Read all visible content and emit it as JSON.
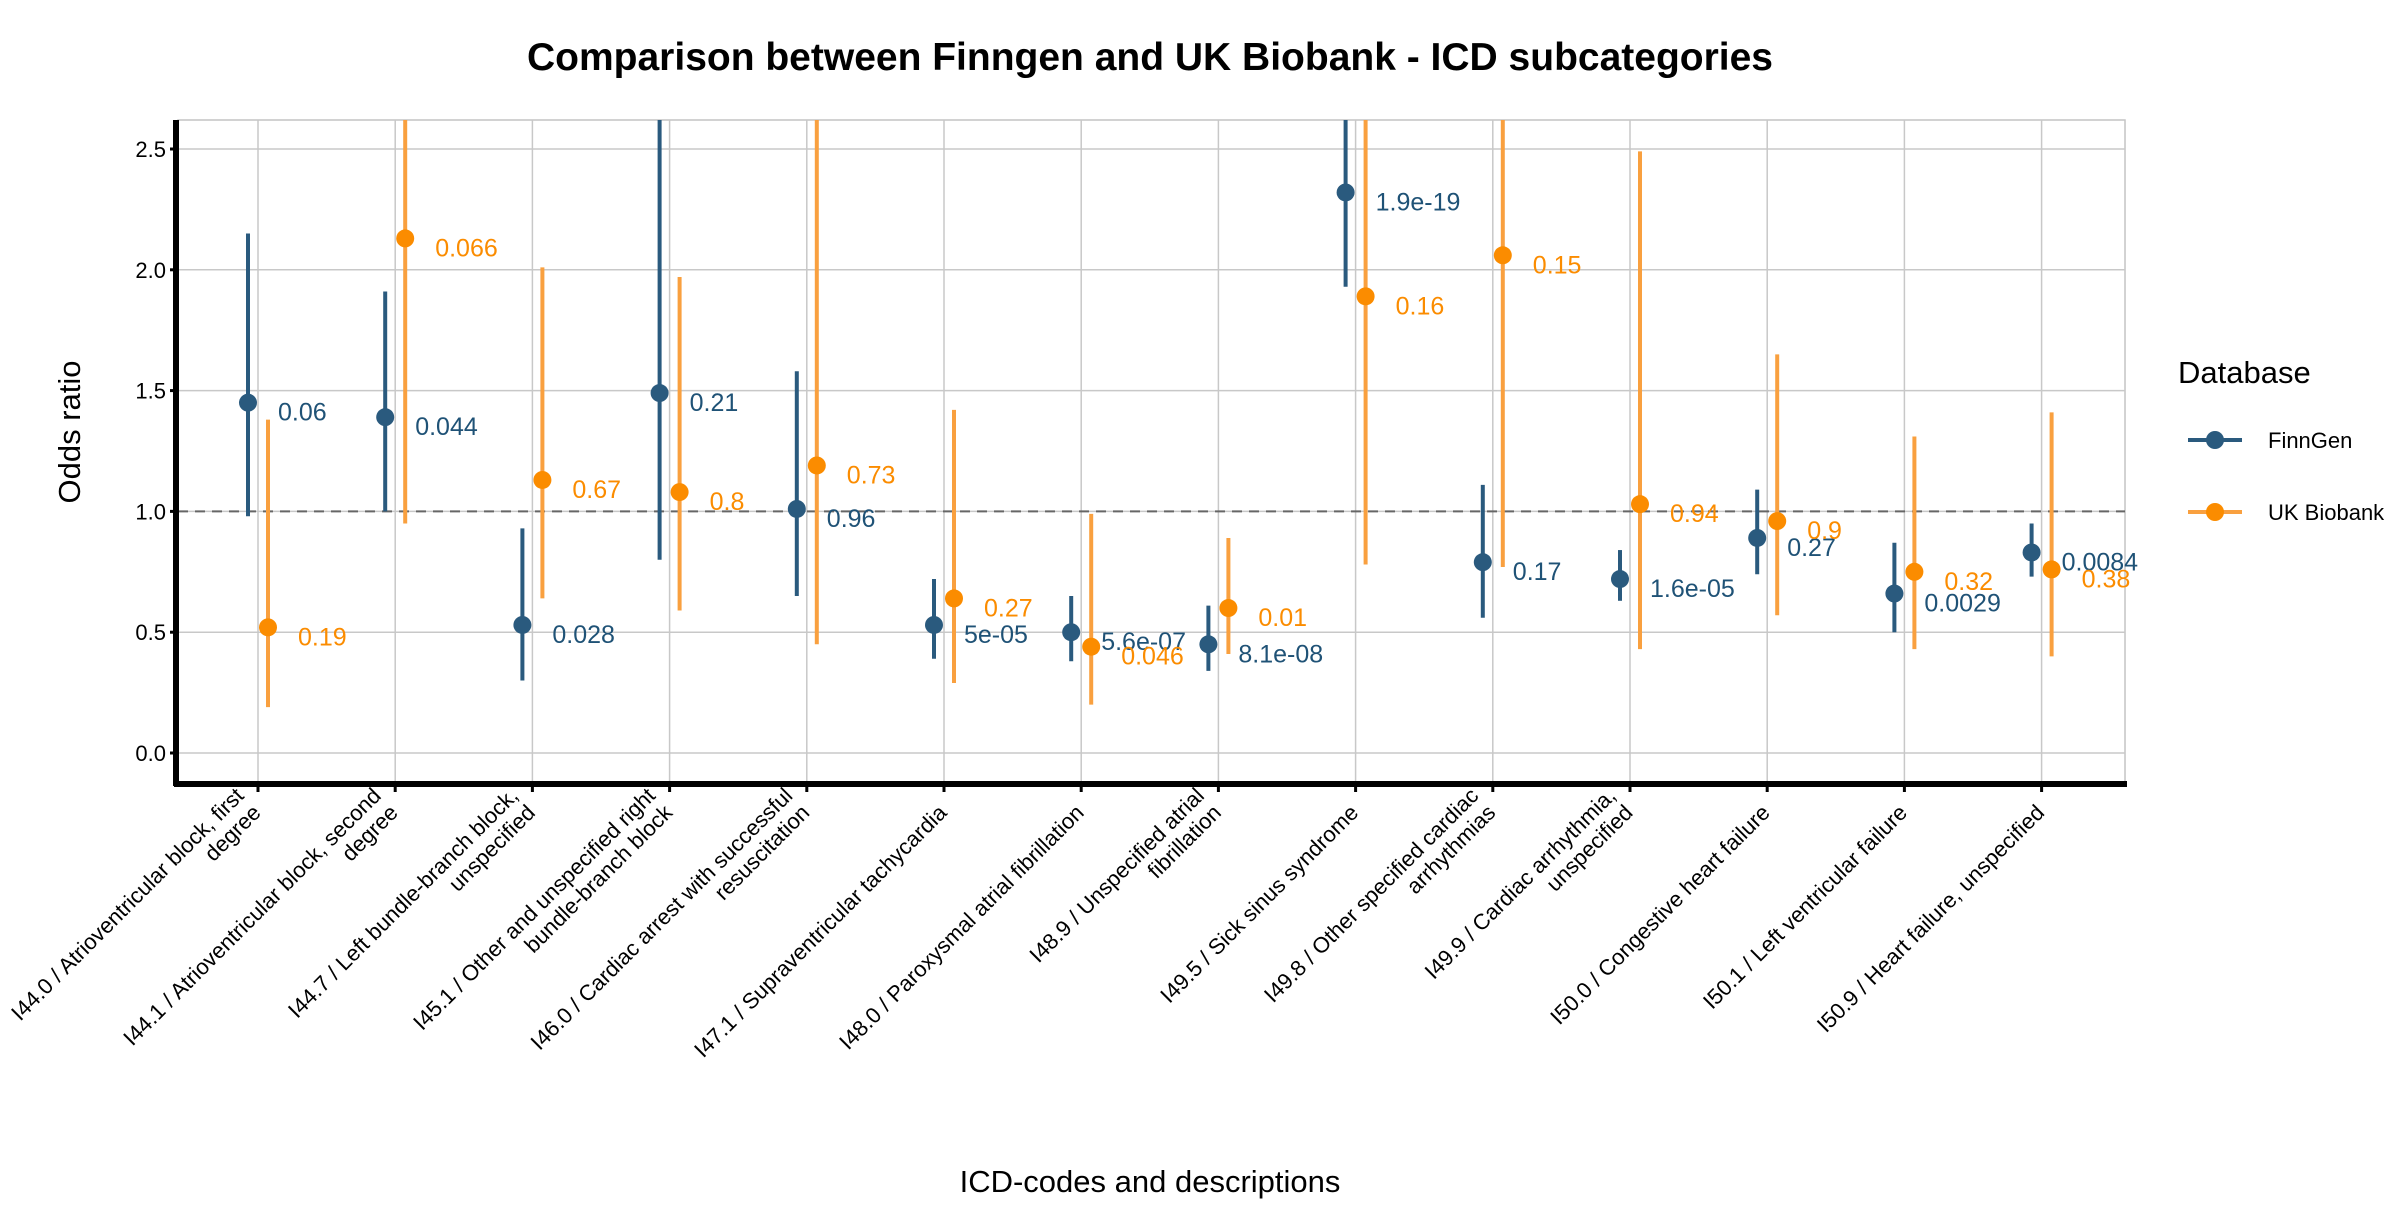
{
  "chart_data": {
    "type": "scatter",
    "title": "Comparison between Finngen and UK Biobank - ICD subcategories",
    "xlabel": "ICD-codes and descriptions",
    "ylabel": "Odds ratio",
    "ylim": [
      -0.12,
      2.62
    ],
    "yticks": [
      "0.0",
      "0.5",
      "1.0",
      "1.5",
      "2.0",
      "2.5"
    ],
    "reference_line": 1.0,
    "grid": true,
    "legend": {
      "title": "Database",
      "placement": "right"
    },
    "categories": [
      "I44.0 / Atrioventricular block, first degree",
      "I44.1 / Atrioventricular block, second degree",
      "I44.7 / Left bundle-branch block, unspecified",
      "I45.1 / Other and unspecified right bundle-branch block",
      "I46.0 / Cardiac arrest with successful resuscitation",
      "I47.1 / Supraventricular tachycardia",
      "I48.0 / Paroxysmal atrial fibrillation",
      "I48.9 / Unspecified atrial fibrillation",
      "I49.5 / Sick sinus syndrome",
      "I49.8 / Other specified cardiac arrhythmias",
      "I49.9 / Cardiac arrhythmia, unspecified",
      "I50.0 / Congestive heart failure",
      "I50.1 / Left ventricular failure",
      "I50.9 / Heart failure, unspecified"
    ],
    "series": [
      {
        "name": "FinnGen",
        "color": "#2a5a7e",
        "label_color": "#1f5276",
        "values": [
          1.45,
          1.39,
          0.53,
          1.49,
          1.01,
          0.53,
          0.5,
          0.45,
          2.32,
          0.79,
          0.72,
          0.89,
          0.66,
          0.83
        ],
        "lower": [
          0.98,
          1.0,
          0.3,
          0.8,
          0.65,
          0.39,
          0.38,
          0.34,
          1.93,
          0.56,
          0.63,
          0.74,
          0.5,
          0.73
        ],
        "upper": [
          2.15,
          1.91,
          0.93,
          2.62,
          1.58,
          0.72,
          0.65,
          0.61,
          2.62,
          1.11,
          0.84,
          1.09,
          0.87,
          0.95
        ],
        "pvalues": [
          "0.06",
          "0.044",
          "0.028",
          "0.21",
          "0.96",
          "5e-05",
          "5.6e-07",
          "8.1e-08",
          "1.9e-19",
          "0.17",
          "1.6e-05",
          "0.27",
          "0.0029",
          "0.0084"
        ]
      },
      {
        "name": "UK Biobank",
        "color": "#f9a03f",
        "point_color": "#fb8c00",
        "label_color": "#fb8c00",
        "values": [
          0.52,
          2.13,
          1.13,
          1.08,
          1.19,
          0.64,
          0.44,
          0.6,
          1.89,
          2.06,
          1.03,
          0.96,
          0.75,
          0.76
        ],
        "lower": [
          0.19,
          0.95,
          0.64,
          0.59,
          0.45,
          0.29,
          0.2,
          0.41,
          0.78,
          0.77,
          0.43,
          0.57,
          0.43,
          0.4
        ],
        "upper": [
          1.38,
          2.62,
          2.01,
          1.97,
          2.62,
          1.42,
          0.99,
          0.89,
          2.62,
          2.62,
          2.49,
          1.65,
          1.31,
          1.41
        ],
        "pvalues": [
          "0.19",
          "0.066",
          "0.67",
          "0.8",
          "0.73",
          "0.27",
          "0.046",
          "0.01",
          "0.16",
          "0.15",
          "0.94",
          "0.9",
          "0.32",
          "0.38"
        ]
      }
    ]
  }
}
